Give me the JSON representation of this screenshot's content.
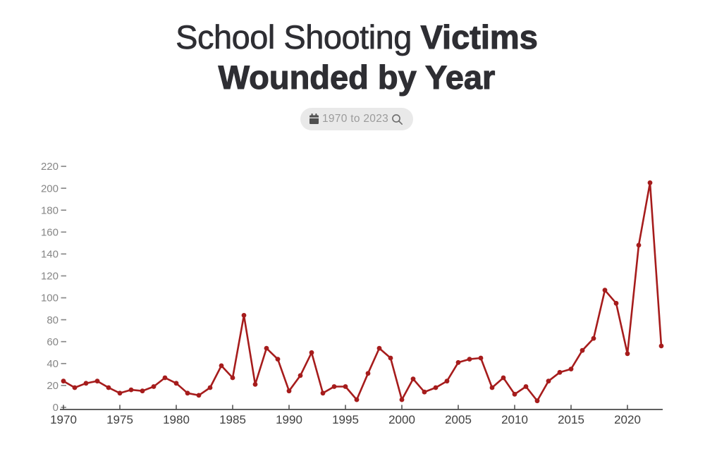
{
  "header": {
    "title_regular": "School Shooting",
    "title_bold_inline": "Victims",
    "title_bold_line2": "Wounded by Year"
  },
  "date_filter": {
    "label": "1970 to 2023",
    "calendar_icon": "calendar-icon",
    "search_icon": "magnifier-icon"
  },
  "colors": {
    "accent_red": "#a61c1c",
    "title_text": "#2e2e33",
    "x_axis_text": "#3f3f3f",
    "y_axis_text": "#868686",
    "axis_line": "#4a4a4a",
    "badge_bg": "#e9e9e9",
    "badge_text": "#9b9b9b",
    "badge_icon": "#4f4f4f"
  },
  "chart_data": {
    "type": "line",
    "title": "School Shooting Victims Wounded by Year",
    "xlabel": "",
    "ylabel": "",
    "x": [
      1970,
      1971,
      1972,
      1973,
      1974,
      1975,
      1976,
      1977,
      1978,
      1979,
      1980,
      1981,
      1982,
      1983,
      1984,
      1985,
      1986,
      1987,
      1988,
      1989,
      1990,
      1991,
      1992,
      1993,
      1994,
      1995,
      1996,
      1997,
      1998,
      1999,
      2000,
      2001,
      2002,
      2003,
      2004,
      2005,
      2006,
      2007,
      2008,
      2009,
      2010,
      2011,
      2012,
      2013,
      2014,
      2015,
      2016,
      2017,
      2018,
      2019,
      2020,
      2021,
      2022,
      2023
    ],
    "series": [
      {
        "name": "Victims Wounded",
        "color": "#a61c1c",
        "values": [
          24,
          18,
          22,
          24,
          18,
          13,
          16,
          15,
          19,
          27,
          22,
          13,
          11,
          18,
          38,
          27,
          84,
          21,
          54,
          44,
          15,
          29,
          50,
          13,
          19,
          19,
          7,
          31,
          54,
          45,
          7,
          26,
          14,
          18,
          24,
          41,
          44,
          45,
          18,
          27,
          12,
          19,
          6,
          24,
          32,
          35,
          52,
          63,
          107,
          95,
          49,
          148,
          205,
          56
        ]
      }
    ],
    "ylim": [
      0,
      220
    ],
    "yticks": [
      0,
      20,
      40,
      60,
      80,
      100,
      120,
      140,
      160,
      180,
      200,
      220
    ],
    "xticks": [
      1970,
      1975,
      1980,
      1985,
      1990,
      1995,
      2000,
      2005,
      2010,
      2015,
      2020
    ],
    "grid": false,
    "legend": "none",
    "marker": "circle"
  }
}
